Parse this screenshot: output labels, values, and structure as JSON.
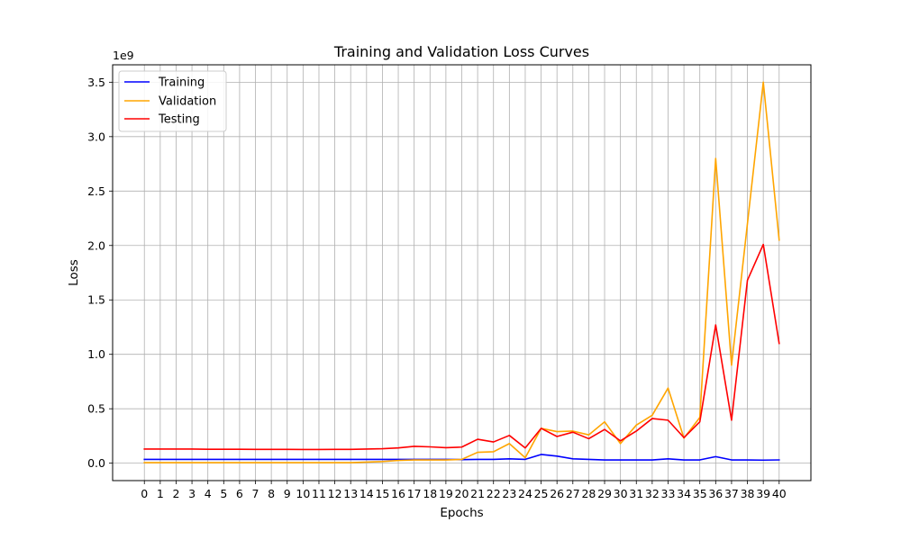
{
  "chart_data": {
    "type": "line",
    "title": "Training and Validation Loss Curves",
    "xlabel": "Epochs",
    "ylabel": "Loss",
    "y_scale_note": "1e9",
    "grid": true,
    "legend_position": "top-left",
    "xlim": [
      -2,
      42
    ],
    "ylim": [
      -160000000,
      3660000000
    ],
    "x": [
      0,
      1,
      2,
      3,
      4,
      5,
      6,
      7,
      8,
      9,
      10,
      11,
      12,
      13,
      14,
      15,
      16,
      17,
      18,
      19,
      20,
      21,
      22,
      23,
      24,
      25,
      26,
      27,
      28,
      29,
      30,
      31,
      32,
      33,
      34,
      35,
      36,
      37,
      38,
      39,
      40
    ],
    "x_tick_labels": [
      "0",
      "1",
      "2",
      "3",
      "4",
      "5",
      "6",
      "7",
      "8",
      "9",
      "10",
      "11",
      "12",
      "13",
      "14",
      "15",
      "16",
      "17",
      "18",
      "19",
      "20",
      "21",
      "22",
      "23",
      "24",
      "25",
      "26",
      "27",
      "28",
      "29",
      "30",
      "31",
      "32",
      "33",
      "34",
      "35",
      "36",
      "37",
      "38",
      "39",
      "40"
    ],
    "y_ticks": [
      0,
      500000000,
      1000000000,
      1500000000,
      2000000000,
      2500000000,
      3000000000,
      3500000000
    ],
    "y_tick_labels": [
      "0.0",
      "0.5",
      "1.0",
      "1.5",
      "2.0",
      "2.5",
      "3.0",
      "3.5"
    ],
    "series": [
      {
        "name": "Training",
        "color": "#0000ff",
        "values": [
          35000000,
          35000000,
          35000000,
          35000000,
          35000000,
          35000000,
          35000000,
          35000000,
          35000000,
          35000000,
          35000000,
          35000000,
          35000000,
          35000000,
          35000000,
          35000000,
          35000000,
          35000000,
          35000000,
          35000000,
          33000000,
          35000000,
          35000000,
          40000000,
          35000000,
          80000000,
          65000000,
          40000000,
          35000000,
          30000000,
          30000000,
          30000000,
          30000000,
          40000000,
          30000000,
          30000000,
          60000000,
          30000000,
          30000000,
          28000000,
          30000000
        ]
      },
      {
        "name": "Validation",
        "color": "#ffa500",
        "values": [
          5000000,
          5000000,
          5000000,
          5000000,
          5000000,
          5000000,
          5000000,
          5000000,
          5000000,
          5000000,
          5000000,
          5000000,
          5000000,
          5000000,
          10000000,
          15000000,
          25000000,
          30000000,
          30000000,
          30000000,
          35000000,
          100000000,
          105000000,
          180000000,
          50000000,
          320000000,
          290000000,
          295000000,
          260000000,
          380000000,
          180000000,
          350000000,
          440000000,
          690000000,
          230000000,
          420000000,
          2800000000,
          900000000,
          2200000000,
          3500000000,
          2050000000
        ]
      },
      {
        "name": "Testing",
        "color": "#ff0000",
        "values": [
          130000000,
          130000000,
          130000000,
          130000000,
          128000000,
          128000000,
          128000000,
          127000000,
          127000000,
          127000000,
          126000000,
          126000000,
          127000000,
          127000000,
          130000000,
          133000000,
          140000000,
          155000000,
          150000000,
          142000000,
          148000000,
          220000000,
          195000000,
          255000000,
          140000000,
          320000000,
          245000000,
          285000000,
          225000000,
          310000000,
          205000000,
          295000000,
          410000000,
          395000000,
          235000000,
          380000000,
          1270000000,
          395000000,
          1680000000,
          2010000000,
          1100000000
        ]
      }
    ]
  }
}
